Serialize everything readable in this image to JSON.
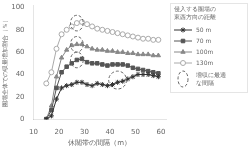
{
  "chart_data": {
    "type": "line",
    "x": [
      15,
      17,
      19,
      21,
      23,
      25,
      27,
      29,
      31,
      33,
      35,
      37,
      39,
      41,
      43,
      45,
      47,
      49,
      51,
      53,
      55,
      57,
      59
    ],
    "series": [
      {
        "name": "50 m",
        "color": "#333333",
        "marker": "star",
        "values": [
          0,
          3,
          18,
          28,
          30,
          31,
          33,
          33,
          31,
          30,
          32,
          31,
          30,
          31,
          33,
          34,
          36,
          38,
          40,
          40,
          40,
          39,
          38
        ]
      },
      {
        "name": "70 m",
        "color": "#555555",
        "marker": "square",
        "values": [
          0,
          8,
          28,
          42,
          47,
          50,
          53,
          54,
          51,
          50,
          50,
          49,
          48,
          49,
          49,
          49,
          48,
          46,
          45,
          44,
          43,
          42,
          41
        ]
      },
      {
        "name": "100m",
        "color": "#888888",
        "marker": "triangle",
        "values": [
          0,
          12,
          38,
          55,
          62,
          66,
          67,
          67,
          65,
          63,
          62,
          62,
          61,
          61,
          60,
          60,
          59,
          59,
          58,
          58,
          58,
          57,
          57
        ]
      },
      {
        "name": "130m",
        "color": "#aaaaaa",
        "marker": "open_circle",
        "values": [
          32,
          42,
          63,
          76,
          80,
          83,
          86,
          87,
          85,
          83,
          81,
          80,
          79,
          78,
          77,
          76,
          75,
          74,
          73,
          72,
          72,
          71,
          71
        ]
      }
    ],
    "xlim": [
      10,
      62
    ],
    "ylim": [
      0,
      102
    ],
    "xticks": [
      10,
      20,
      30,
      40,
      50,
      60
    ],
    "yticks": [
      0,
      20,
      40,
      60,
      80,
      100
    ],
    "xlabel": "休闒帯の間隔（m）",
    "ylabel": "圏場全体での収量増加割合（％）",
    "grid": false,
    "legend": "right",
    "legend_title": [
      "侵入する圏場の",
      "東西方向の距離"
    ],
    "ellipses": [
      {
        "x": 43,
        "y": 35,
        "width": 7,
        "height": 16
      },
      {
        "x": 27,
        "y": 53,
        "width": 5,
        "height": 14
      },
      {
        "x": 27,
        "y": 67,
        "width": 5,
        "height": 14
      },
      {
        "x": 27,
        "y": 86,
        "width": 5,
        "height": 14
      }
    ],
    "ellipse_label": [
      "増収に最適",
      "な間隔"
    ]
  }
}
